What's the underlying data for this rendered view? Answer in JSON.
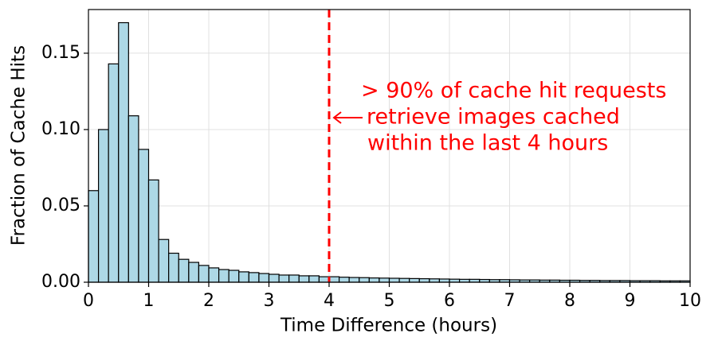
{
  "chart_data": {
    "type": "histogram",
    "xlabel": "Time Difference (hours)",
    "ylabel": "Fraction of Cache Hits",
    "bins": [
      0,
      0.1667,
      0.3333,
      0.5,
      0.6667,
      0.8333,
      1,
      1.1667,
      1.3333,
      1.5,
      1.6667,
      1.8333,
      2,
      2.1667,
      2.3333,
      2.5,
      2.6667,
      2.8333,
      3,
      3.1667,
      3.3333,
      3.5,
      3.6667,
      3.8333,
      4,
      4.1667,
      4.3333,
      4.5,
      4.6667,
      4.8333,
      5,
      5.1667,
      5.3333,
      5.5,
      5.6667,
      5.8333,
      6,
      6.1667,
      6.3333,
      6.5,
      6.6667,
      6.8333,
      7,
      7.1667,
      7.3333,
      7.5,
      7.6667,
      7.8333,
      8,
      8.1667,
      8.3333,
      8.5,
      8.6667,
      8.8333,
      9,
      9.1667,
      9.3333,
      9.5,
      9.6667,
      9.8333,
      10
    ],
    "values": [
      0.06,
      0.1,
      0.143,
      0.17,
      0.109,
      0.087,
      0.067,
      0.028,
      0.019,
      0.015,
      0.013,
      0.011,
      0.0094,
      0.0083,
      0.0078,
      0.0068,
      0.0063,
      0.0057,
      0.0052,
      0.0047,
      0.0047,
      0.0042,
      0.0042,
      0.0036,
      0.0036,
      0.0033,
      0.0031,
      0.003,
      0.0028,
      0.0027,
      0.0026,
      0.0025,
      0.0024,
      0.0023,
      0.0022,
      0.0021,
      0.002,
      0.0019,
      0.0019,
      0.0018,
      0.0017,
      0.0017,
      0.0016,
      0.0015,
      0.0015,
      0.0014,
      0.0014,
      0.0013,
      0.0013,
      0.0012,
      0.0012,
      0.0011,
      0.0011,
      0.0011,
      0.001,
      0.001,
      0.001,
      0.0009,
      0.0009,
      0.0009
    ],
    "color": "#add8e6",
    "edgecolor": "#000000",
    "xlim": [
      0,
      10
    ],
    "ylim": [
      0,
      0.1786
    ],
    "xticks": [
      0,
      1,
      2,
      3,
      4,
      5,
      6,
      7,
      8,
      9,
      10
    ],
    "yticks": [
      {
        "value": 0,
        "label": "0.00"
      },
      {
        "value": 0.05,
        "label": "0.05"
      },
      {
        "value": 0.1,
        "label": "0.10"
      },
      {
        "value": 0.15,
        "label": "0.15"
      }
    ],
    "grid": true,
    "vline": {
      "x": 4,
      "color": "#ff0000"
    },
    "annotation": [
      "> 90% of cache hit requests",
      "retrieve images cached",
      "within the last 4 hours"
    ]
  }
}
